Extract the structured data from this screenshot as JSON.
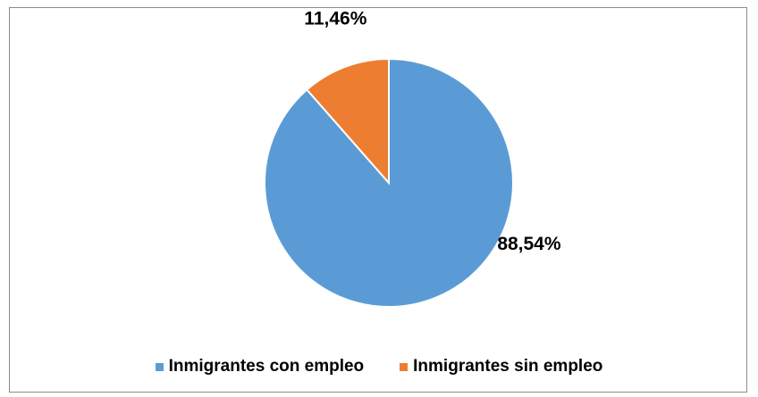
{
  "chart_data": {
    "type": "pie",
    "title": "",
    "categories": [
      "Inmigrantes con empleo",
      "Inmigrantes sin empleo"
    ],
    "values": [
      88.54,
      11.46
    ],
    "labels": [
      "88,54%",
      "11,46%"
    ],
    "colors": [
      "#5b9bd5",
      "#ed7d31"
    ],
    "legend_position": "bottom",
    "start_angle": "top, clockwise; small slice ends at top"
  },
  "legend": {
    "items": [
      {
        "label": "Inmigrantes con empleo",
        "color": "#5b9bd5"
      },
      {
        "label": "Inmigrantes sin empleo",
        "color": "#ed7d31"
      }
    ]
  }
}
